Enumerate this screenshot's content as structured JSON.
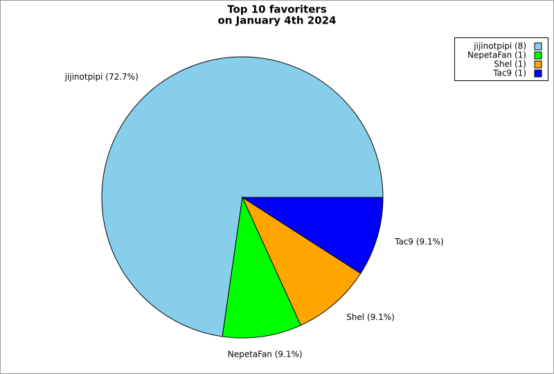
{
  "chart_data": {
    "type": "pie",
    "title": [
      "Top 10 favoriters",
      "on January 4th 2024"
    ],
    "categories": [
      "jijinotpipi",
      "NepetaFan",
      "Shel",
      "Tac9"
    ],
    "values": [
      8,
      1,
      1,
      1
    ],
    "slice_labels": [
      "jijinotpipi (72.7%)",
      "NepetaFan (9.1%)",
      "Shel (9.1%)",
      "Tac9 (9.1%)"
    ],
    "legend_labels": [
      "jijinotpipi (8)",
      "NepetaFan (1)",
      "Shel (1)",
      "Tac9 (1)"
    ],
    "colors": [
      "#87ceeb",
      "#00ff00",
      "#ffa500",
      "#0000ff"
    ],
    "legend": "top-right"
  }
}
